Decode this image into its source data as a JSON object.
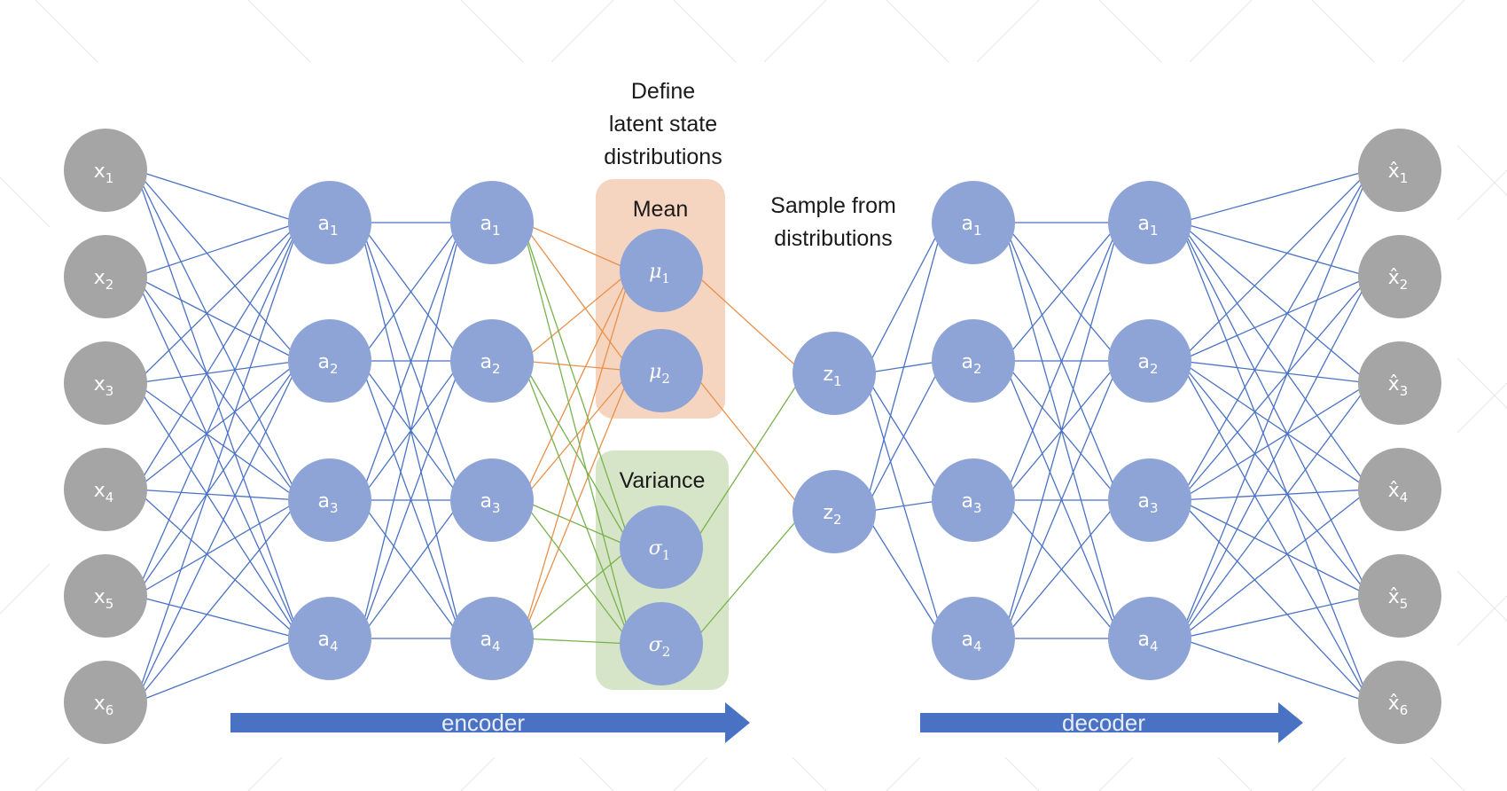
{
  "colors": {
    "input_node": "#a5a5a5",
    "hidden_node": "#8ea4d6",
    "encoder_edge": "#4a72c4",
    "mean_edge": "#e8904a",
    "variance_edge": "#78b24c",
    "mean_box": "#f6d5c0",
    "variance_box": "#d6e5c8",
    "arrow": "#4a72c4",
    "background_pattern": "#e6e6e6"
  },
  "labels": {
    "define_latent": [
      "Define",
      "latent state",
      "distributions"
    ],
    "sample_from": [
      "Sample from",
      "distributions"
    ],
    "mean": "Mean",
    "variance": "Variance",
    "encoder": "encoder",
    "decoder": "decoder"
  },
  "layers": {
    "inputs": [
      {
        "base": "x",
        "sub": "1"
      },
      {
        "base": "x",
        "sub": "2"
      },
      {
        "base": "x",
        "sub": "3"
      },
      {
        "base": "x",
        "sub": "4"
      },
      {
        "base": "x",
        "sub": "5"
      },
      {
        "base": "x",
        "sub": "6"
      }
    ],
    "enc_hidden_1": [
      {
        "base": "a",
        "sub": "1"
      },
      {
        "base": "a",
        "sub": "2"
      },
      {
        "base": "a",
        "sub": "3"
      },
      {
        "base": "a",
        "sub": "4"
      }
    ],
    "enc_hidden_2": [
      {
        "base": "a",
        "sub": "1"
      },
      {
        "base": "a",
        "sub": "2"
      },
      {
        "base": "a",
        "sub": "3"
      },
      {
        "base": "a",
        "sub": "4"
      }
    ],
    "means": [
      {
        "base": "μ",
        "sub": "1"
      },
      {
        "base": "μ",
        "sub": "2"
      }
    ],
    "sigmas": [
      {
        "base": "σ",
        "sub": "1"
      },
      {
        "base": "σ",
        "sub": "2"
      }
    ],
    "latent": [
      {
        "base": "z",
        "sub": "1"
      },
      {
        "base": "z",
        "sub": "2"
      }
    ],
    "dec_hidden_1": [
      {
        "base": "a",
        "sub": "1"
      },
      {
        "base": "a",
        "sub": "2"
      },
      {
        "base": "a",
        "sub": "3"
      },
      {
        "base": "a",
        "sub": "4"
      }
    ],
    "dec_hidden_2": [
      {
        "base": "a",
        "sub": "1"
      },
      {
        "base": "a",
        "sub": "2"
      },
      {
        "base": "a",
        "sub": "3"
      },
      {
        "base": "a",
        "sub": "4"
      }
    ],
    "outputs": [
      {
        "base": "x̂",
        "sub": "1"
      },
      {
        "base": "x̂",
        "sub": "2"
      },
      {
        "base": "x̂",
        "sub": "3"
      },
      {
        "base": "x̂",
        "sub": "4"
      },
      {
        "base": "x̂",
        "sub": "5"
      },
      {
        "base": "x̂",
        "sub": "6"
      }
    ]
  }
}
